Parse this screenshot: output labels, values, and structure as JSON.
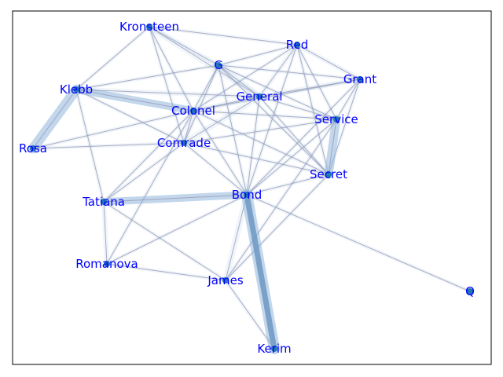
{
  "colors": {
    "node_label": "#0000ff",
    "node_dot": "#1f77b4",
    "edge": "#9a9ab4",
    "edge_highlight": "#8fb6dc",
    "frame": "#000000",
    "background": "#ffffff"
  },
  "nodes": [
    {
      "id": "Kronsteen",
      "label": "Kronsteen"
    },
    {
      "id": "Red",
      "label": "Red"
    },
    {
      "id": "G",
      "label": "G"
    },
    {
      "id": "Grant",
      "label": "Grant"
    },
    {
      "id": "Klebb",
      "label": "Klebb"
    },
    {
      "id": "General",
      "label": "General"
    },
    {
      "id": "Colonel",
      "label": "Colonel"
    },
    {
      "id": "Service",
      "label": "Service"
    },
    {
      "id": "Rosa",
      "label": "Rosa"
    },
    {
      "id": "Comrade",
      "label": "Comrade"
    },
    {
      "id": "Secret",
      "label": "Secret"
    },
    {
      "id": "Bond",
      "label": "Bond"
    },
    {
      "id": "Tatiana",
      "label": "Tatiana"
    },
    {
      "id": "Romanova",
      "label": "Romanova"
    },
    {
      "id": "James",
      "label": "James"
    },
    {
      "id": "Q",
      "label": "Q"
    },
    {
      "id": "Kerim",
      "label": "Kerim"
    }
  ],
  "edges": [
    [
      "Kronsteen",
      "Red",
      1
    ],
    [
      "Kronsteen",
      "G",
      2
    ],
    [
      "Kronsteen",
      "General",
      3
    ],
    [
      "Kronsteen",
      "Colonel",
      1
    ],
    [
      "Kronsteen",
      "Comrade",
      1
    ],
    [
      "Kronsteen",
      "Klebb",
      1
    ],
    [
      "Red",
      "Grant",
      2
    ],
    [
      "Red",
      "G",
      1
    ],
    [
      "Red",
      "General",
      2
    ],
    [
      "Red",
      "Colonel",
      1
    ],
    [
      "Red",
      "Service",
      1
    ],
    [
      "Red",
      "Secret",
      1
    ],
    [
      "Red",
      "Bond",
      1
    ],
    [
      "G",
      "Grant",
      1
    ],
    [
      "G",
      "General",
      3
    ],
    [
      "G",
      "Colonel",
      1
    ],
    [
      "G",
      "Comrade",
      1
    ],
    [
      "G",
      "Service",
      1
    ],
    [
      "G",
      "Secret",
      1
    ],
    [
      "G",
      "Bond",
      1
    ],
    [
      "G",
      "Klebb",
      1
    ],
    [
      "Grant",
      "General",
      2
    ],
    [
      "Grant",
      "Service",
      1
    ],
    [
      "Grant",
      "Secret",
      1
    ],
    [
      "Grant",
      "Bond",
      1
    ],
    [
      "Grant",
      "Colonel",
      1
    ],
    [
      "Klebb",
      "Colonel",
      4
    ],
    [
      "Klebb",
      "General",
      2
    ],
    [
      "Klebb",
      "Comrade",
      1
    ],
    [
      "Klebb",
      "Tatiana",
      1
    ],
    [
      "Klebb",
      "Rosa",
      6
    ],
    [
      "General",
      "Colonel",
      2
    ],
    [
      "General",
      "Comrade",
      3
    ],
    [
      "General",
      "Service",
      1
    ],
    [
      "General",
      "Bond",
      1
    ],
    [
      "General",
      "Secret",
      1
    ],
    [
      "Colonel",
      "Comrade",
      2
    ],
    [
      "Colonel",
      "Service",
      1
    ],
    [
      "Colonel",
      "Secret",
      1
    ],
    [
      "Colonel",
      "Bond",
      1
    ],
    [
      "Colonel",
      "Tatiana",
      1
    ],
    [
      "Colonel",
      "Romanova",
      1
    ],
    [
      "Service",
      "Secret",
      5
    ],
    [
      "Service",
      "Comrade",
      1
    ],
    [
      "Service",
      "Bond",
      1
    ],
    [
      "Service",
      "James",
      1
    ],
    [
      "Rosa",
      "Comrade",
      1
    ],
    [
      "Rosa",
      "Colonel",
      1
    ],
    [
      "Comrade",
      "Secret",
      1
    ],
    [
      "Comrade",
      "Bond",
      1
    ],
    [
      "Comrade",
      "Tatiana",
      1
    ],
    [
      "Secret",
      "Bond",
      1
    ],
    [
      "Secret",
      "James",
      1
    ],
    [
      "Bond",
      "Tatiana",
      4
    ],
    [
      "Bond",
      "James",
      3
    ],
    [
      "Bond",
      "Kerim",
      7
    ],
    [
      "Bond",
      "Q",
      1
    ],
    [
      "Bond",
      "Romanova",
      1
    ],
    [
      "Tatiana",
      "Romanova",
      2
    ],
    [
      "Tatiana",
      "James",
      1
    ],
    [
      "Romanova",
      "James",
      1
    ],
    [
      "James",
      "Kerim",
      1
    ]
  ]
}
